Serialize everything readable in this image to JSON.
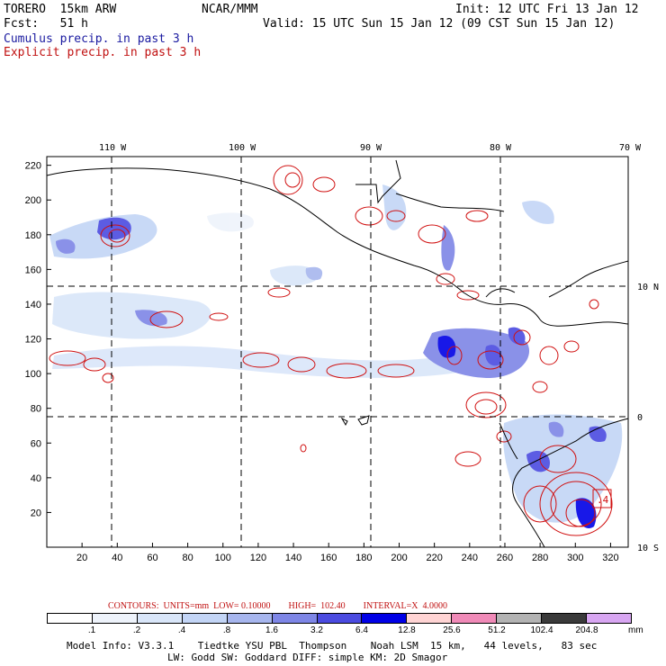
{
  "header": {
    "model": "TORERO  15km ARW",
    "center": "NCAR/MMM",
    "init": "Init: 12 UTC Fri 13 Jan 12",
    "fcst": "Fcst:   51 h",
    "valid": "Valid: 15 UTC Sun 15 Jan 12 (09 CST Sun 15 Jan 12)",
    "line_cumulus": "Cumulus precip. in past 3 h",
    "line_explicit": "Explicit precip. in past 3 h"
  },
  "map": {
    "lon_labels": [
      "110 W",
      "100 W",
      "90 W",
      "80 W",
      "70 W"
    ],
    "lat_labels": [
      "10 N",
      "0",
      "10 S"
    ],
    "x_ticks": [
      "20",
      "40",
      "60",
      "80",
      "100",
      "120",
      "140",
      "160",
      "180",
      "200",
      "220",
      "240",
      "260",
      "280",
      "300",
      "320"
    ],
    "y_ticks": [
      "20",
      "40",
      "60",
      "80",
      "100",
      "120",
      "140",
      "160",
      "180",
      "200",
      "220"
    ],
    "box_label": ".4"
  },
  "contours_info": {
    "text": "CONTOURS:  UNITS=mm  LOW= 0.10000        HIGH=  102.40        INTERVAL=X  4.0000"
  },
  "legend": {
    "labels": [
      ".1",
      ".2",
      ".4",
      ".8",
      "1.6",
      "3.2",
      "6.4",
      "12.8",
      "25.6",
      "51.2",
      "102.4",
      "204.8"
    ],
    "unit": "mm",
    "colors": [
      "#ffffff",
      "#eef3fb",
      "#d9e6f9",
      "#c3d5f6",
      "#a7b6ee",
      "#7e86e6",
      "#4b4be0",
      "#0000e6",
      "#ffd4d4",
      "#f08ab8",
      "#b3b3b3",
      "#3a3a3a",
      "#d8a6f2"
    ]
  },
  "footer": {
    "line1": "Model Info: V3.3.1    Tiedtke YSU PBL  Thompson    Noah LSM  15 km,   44 levels,   83 sec",
    "line2": "LW: Godd SW: Goddard DIFF: simple KM: 2D Smagor"
  }
}
